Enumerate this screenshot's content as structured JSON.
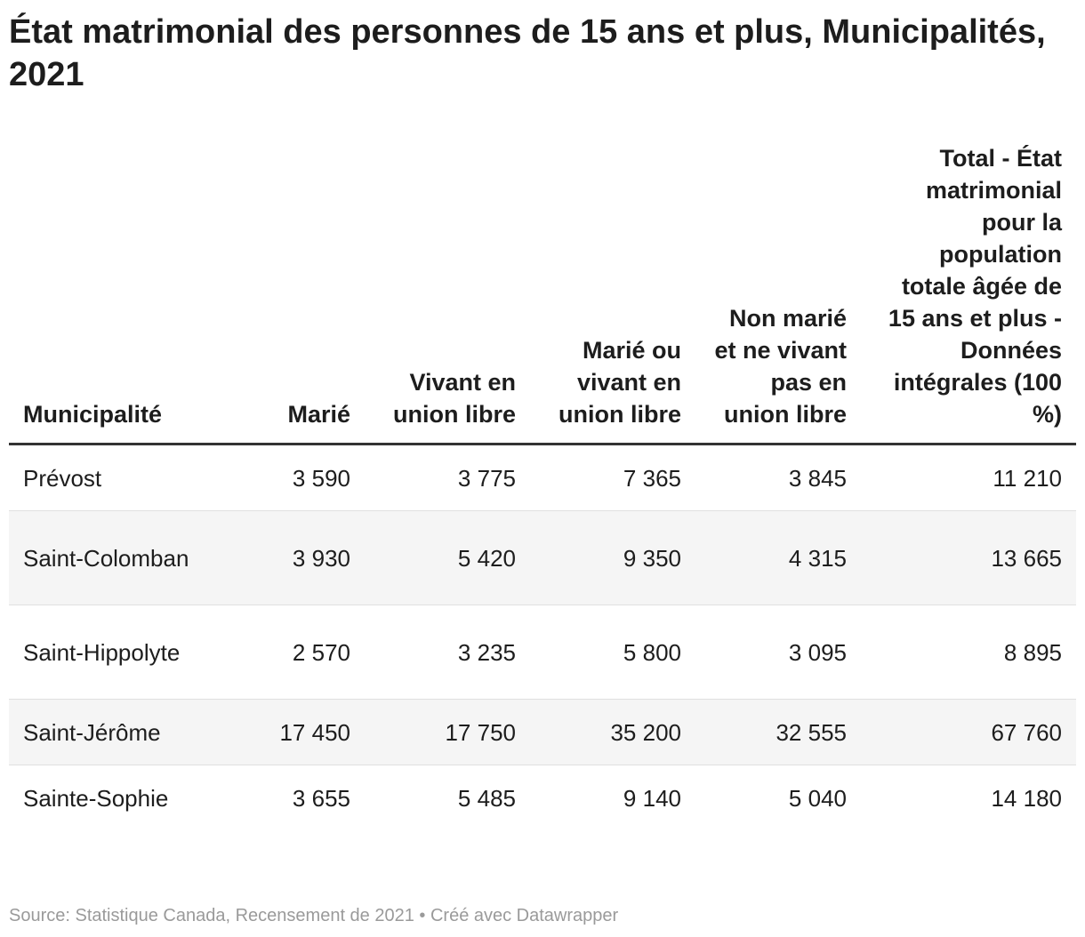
{
  "title": "État matrimonial des personnes de 15 ans et plus, Municipalités, 2021",
  "table": {
    "headers": [
      "Municipalité",
      "Marié",
      "Vivant en union libre",
      "Marié ou vivant en union libre",
      "Non marié et ne vivant pas en union libre",
      "Total - État matrimonial pour la population totale âgée de 15 ans et plus - Données intégrales (100 %)"
    ],
    "rows": [
      [
        "Prévost",
        "3 590",
        "3 775",
        "7 365",
        "3 845",
        "11 210"
      ],
      [
        "Saint-Colomban",
        "3 930",
        "5 420",
        "9 350",
        "4 315",
        "13 665"
      ],
      [
        "Saint-Hippolyte",
        "2 570",
        "3 235",
        "5 800",
        "3 095",
        "8 895"
      ],
      [
        "Saint-Jérôme",
        "17 450",
        "17 750",
        "35 200",
        "32 555",
        "67 760"
      ],
      [
        "Sainte-Sophie",
        "3 655",
        "5 485",
        "9 140",
        "5 040",
        "14 180"
      ]
    ]
  },
  "footer": {
    "source": "Source: Statistique Canada, Recensement de 2021 • Créé avec Datawrapper"
  },
  "colors": {
    "text": "#1d1d1d",
    "header_rule": "#333333",
    "row_alt_bg": "#f5f5f5",
    "row_divider": "#e0e0e0",
    "source_text": "#9a9a9a"
  }
}
